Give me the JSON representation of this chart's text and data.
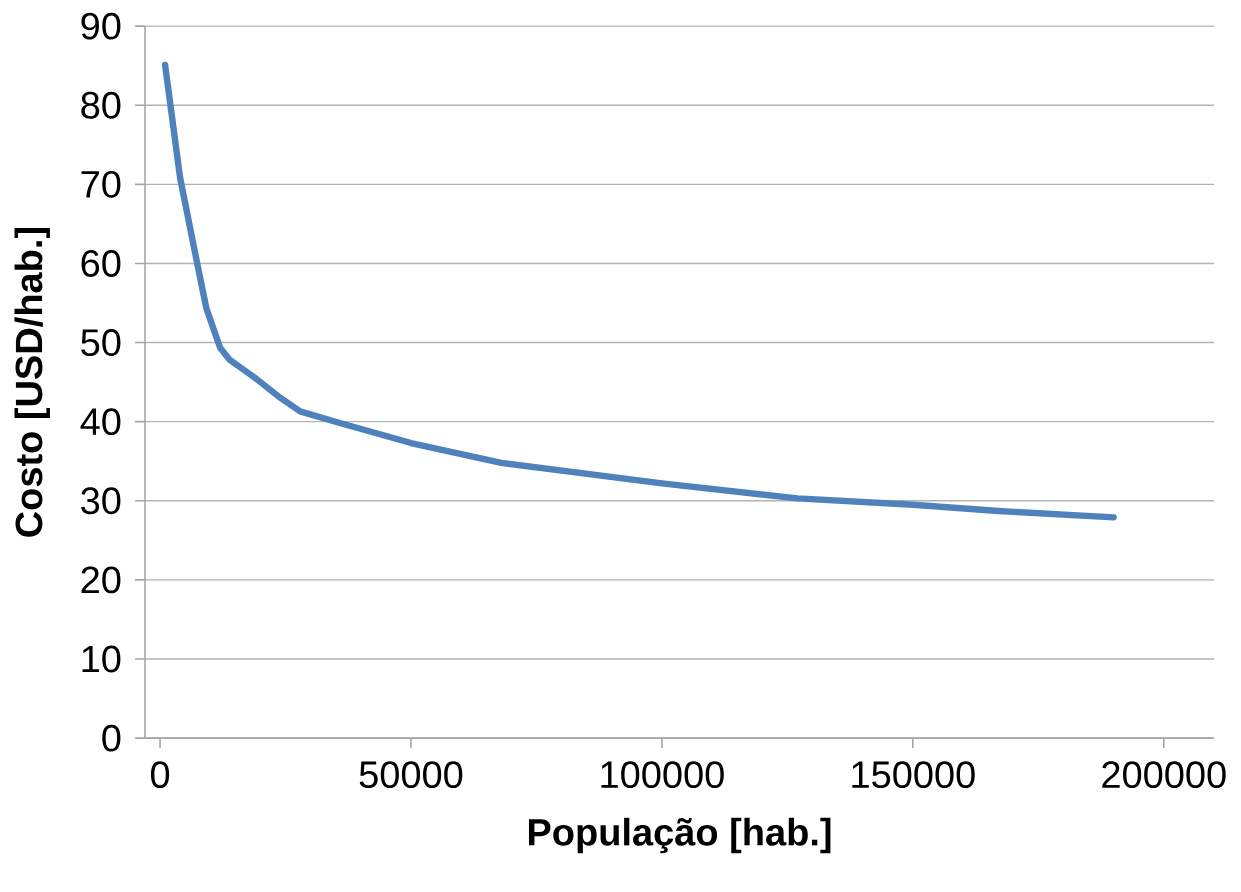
{
  "chart_data": {
    "type": "line",
    "xlabel": "População [hab.]",
    "ylabel": "Costo [USD/hab.]",
    "x": [
      1000,
      4000,
      7400,
      9200,
      10600,
      12000,
      13900,
      19000,
      24000,
      27900,
      36000,
      50000,
      68000,
      100000,
      127000,
      150000,
      167000,
      190000
    ],
    "series": [
      {
        "color": "#4f81bd",
        "values": [
          85.1,
          70.8,
          60,
          54.4,
          51.8,
          49.3,
          47.8,
          45.5,
          43,
          41.3,
          39.8,
          37.3,
          34.8,
          32.2,
          30.3,
          29.5,
          28.7,
          27.9
        ]
      }
    ],
    "xlim": [
      -3000,
      210000
    ],
    "ylim": [
      0,
      90
    ],
    "xticks": [
      0,
      50000,
      100000,
      150000,
      200000
    ],
    "yticks": [
      0,
      10,
      20,
      30,
      40,
      50,
      60,
      70,
      80,
      90
    ],
    "grid": "y",
    "marker": "none",
    "line_style": "solid"
  }
}
